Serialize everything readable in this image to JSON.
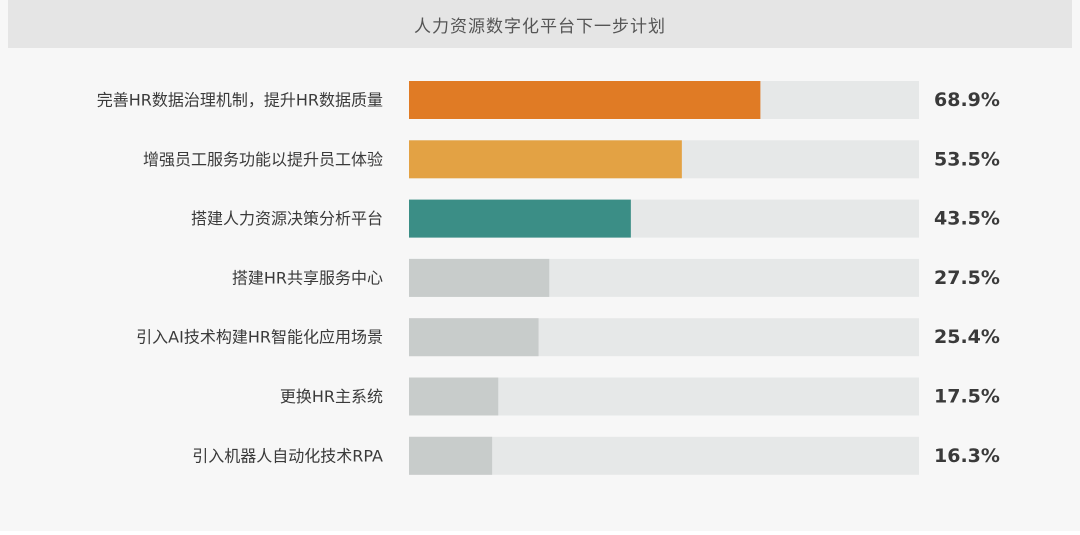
{
  "chart_data": {
    "type": "bar",
    "orientation": "horizontal",
    "title": "人力资源数字化平台下一步计划",
    "categories": [
      "完善HR数据治理机制，提升HR数据质量",
      "增强员工服务功能以提升员工体验",
      "搭建人力资源决策分析平台",
      "搭建HR共享服务中心",
      "引入AI技术构建HR智能化应用场景",
      "更换HR主系统",
      "引入机器人自动化技术RPA"
    ],
    "values": [
      68.9,
      53.5,
      43.5,
      27.5,
      25.4,
      17.5,
      16.3
    ],
    "value_labels": [
      "68.9%",
      "53.5%",
      "43.5%",
      "27.5%",
      "25.4%",
      "17.5%",
      "16.3%"
    ],
    "unit": "%",
    "xlim": [
      0,
      100
    ],
    "grid": false,
    "legend": "none",
    "colors": {
      "bars": [
        "#e07b25",
        "#e3a244",
        "#3b8e86",
        "#c8cccb",
        "#c8cccb",
        "#c8cccb",
        "#c8cccb"
      ],
      "track": "#e6e8e8",
      "label_text": "#3a3a3a",
      "value_text": "#3a3a3a",
      "title_text": "#555555",
      "title_bar": "#e5e5e5",
      "background": "#f7f7f7"
    }
  }
}
